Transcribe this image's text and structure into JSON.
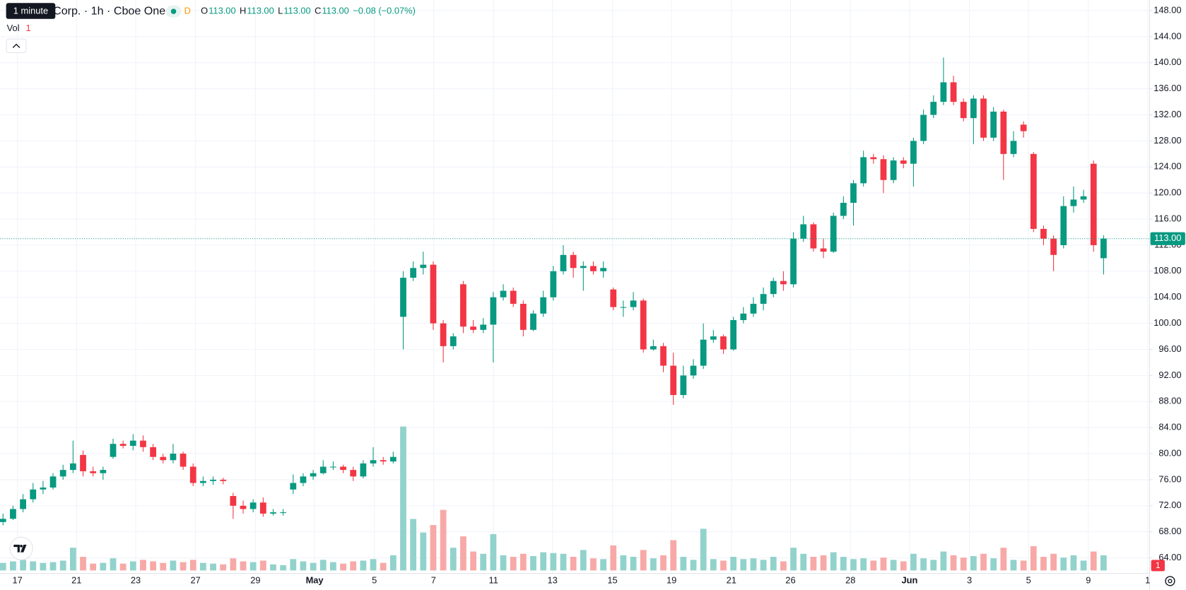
{
  "chart_data": {
    "type": "candlestick",
    "tooltip": "1 minute",
    "title": "Corp. · 1h · Cboe One",
    "interval_badge": "D",
    "ohlc": [
      {
        "label": "O",
        "value": "113.00"
      },
      {
        "label": "H",
        "value": "113.00"
      },
      {
        "label": "L",
        "value": "113.00"
      },
      {
        "label": "C",
        "value": "113.00"
      }
    ],
    "change": "−0.08 (−0.07%)",
    "volume_label": "Vol",
    "volume_value": "1",
    "alert_badge": "1",
    "last_price": {
      "value": 113,
      "label": "113.00"
    },
    "up_color": "#089981",
    "down_color": "#f23645",
    "grid": true,
    "open": [
      69.5,
      70,
      71.5,
      73,
      74.5,
      74.8,
      76.5,
      77.5,
      79.8,
      77.3,
      77,
      79.5,
      81.5,
      81.2,
      82,
      81,
      79.5,
      79,
      80,
      78,
      75.5,
      75.8,
      76,
      73.5,
      72,
      71.5,
      72.5,
      70.8,
      71,
      74.5,
      75.5,
      76.5,
      77,
      78,
      78,
      77.5,
      76.5,
      78.5,
      79,
      78.8,
      101,
      107,
      108.5,
      109,
      100,
      96.5,
      106,
      99.5,
      99,
      99.8,
      104,
      105,
      103,
      99,
      101.5,
      104,
      108,
      110.5,
      108.5,
      108.8,
      108,
      105.2,
      102.5,
      102.5,
      103.5,
      96,
      96.5,
      93.5,
      89,
      92,
      93.5,
      97.5,
      98,
      96,
      100.5,
      101.5,
      103,
      104.5,
      106.5,
      106,
      113,
      115.2,
      111.5,
      111,
      116.5,
      118.5,
      121.5,
      125.5,
      125.2,
      122,
      125,
      124.5,
      128,
      132,
      134,
      137,
      134,
      131.5,
      134.5,
      128.5,
      132.5,
      126,
      130.5,
      126,
      114.5,
      113,
      112,
      118,
      119,
      124.5,
      110
    ],
    "high": [
      70.8,
      72,
      73.8,
      75.5,
      75.8,
      77,
      78.3,
      82,
      80.5,
      78,
      78,
      82.3,
      82,
      83,
      82.8,
      81.5,
      80,
      81.5,
      80.3,
      78.5,
      76.5,
      76.5,
      76.3,
      74,
      72.8,
      73,
      73.3,
      71.5,
      71.5,
      76.8,
      77,
      77.5,
      79,
      78.8,
      78.3,
      78,
      79,
      81,
      79.5,
      80.3,
      108,
      109.5,
      111,
      109.5,
      100.5,
      98.5,
      106.5,
      100.5,
      100.8,
      104.8,
      106,
      105.5,
      103.5,
      102,
      105,
      108.8,
      112,
      111,
      109.5,
      109.5,
      109.5,
      105.5,
      103.5,
      104.8,
      103.8,
      97.5,
      97,
      95.5,
      93.5,
      94.5,
      100,
      99,
      98.3,
      101,
      102.5,
      104,
      105.5,
      107,
      108,
      114,
      116.5,
      115.5,
      113,
      117,
      119.5,
      122,
      126.5,
      126,
      125.8,
      125.5,
      125.5,
      128.5,
      132.8,
      135,
      140.8,
      138,
      134.5,
      135,
      135,
      133.2,
      132.8,
      129.5,
      131,
      126.3,
      115,
      113.5,
      119.5,
      121,
      120.5,
      125,
      113.5
    ],
    "low": [
      69,
      69.8,
      71,
      72.5,
      73.8,
      74.5,
      76,
      77,
      76.5,
      76.5,
      76,
      79.2,
      80.8,
      80.5,
      80.3,
      79,
      78.5,
      78.5,
      77.5,
      75,
      75,
      75.2,
      75.3,
      70,
      70.8,
      71,
      70.3,
      70.5,
      70.5,
      73.8,
      75,
      76,
      76.8,
      77.5,
      77,
      75.8,
      76.2,
      78,
      78.3,
      78.5,
      96,
      106.5,
      107.5,
      99,
      94,
      96,
      98.5,
      98.5,
      98.5,
      94,
      103.5,
      102.5,
      98,
      98.8,
      101,
      103.5,
      107.5,
      107,
      105,
      107.5,
      107,
      102,
      101,
      102,
      95.5,
      95.8,
      92.5,
      87.5,
      88.5,
      91.5,
      93,
      97,
      95.3,
      95.8,
      100,
      101,
      102,
      104,
      105,
      105.5,
      112.5,
      111,
      110,
      110.8,
      116,
      115,
      121,
      124.5,
      120,
      121.5,
      123.8,
      121,
      127.5,
      131.5,
      133.5,
      133.5,
      131,
      127.5,
      128,
      128,
      122,
      125.5,
      128.5,
      114,
      112,
      108,
      111.5,
      117,
      118.5,
      111,
      107.5
    ],
    "close": [
      70,
      71.5,
      73,
      74.5,
      74.8,
      76.5,
      77.5,
      78.5,
      77.3,
      77,
      77.5,
      81.5,
      81.2,
      82,
      81,
      79.5,
      79,
      80,
      78,
      75.5,
      75.8,
      76,
      75.8,
      72,
      71.5,
      72.5,
      70.8,
      71,
      71,
      75.5,
      76.5,
      77,
      78,
      78,
      77.5,
      76.5,
      78.5,
      79,
      78.8,
      79.5,
      107,
      108.5,
      109,
      100,
      96.5,
      98,
      99.5,
      99,
      99.8,
      104,
      105,
      103,
      99,
      101.5,
      104,
      108,
      110.5,
      108.5,
      108.8,
      108,
      108.5,
      102.5,
      102.5,
      103.5,
      96,
      96.5,
      93.5,
      89,
      92,
      93.5,
      97.5,
      98,
      96,
      100.5,
      101.5,
      103,
      104.5,
      106.5,
      106,
      113,
      115.2,
      111.5,
      111,
      116.5,
      118.5,
      121.5,
      125.5,
      125.2,
      122,
      125,
      124.5,
      128,
      132,
      134,
      137,
      134,
      131.5,
      134.5,
      128.5,
      132.5,
      126,
      128,
      129.5,
      114.5,
      113,
      110.5,
      118,
      119,
      119.5,
      112,
      113
    ],
    "volume": [
      10,
      12,
      14,
      12,
      10,
      11,
      13,
      30,
      18,
      9,
      10,
      16,
      9,
      12,
      14,
      12,
      10,
      13,
      11,
      14,
      10,
      9,
      8,
      16,
      12,
      11,
      13,
      8,
      7,
      15,
      12,
      10,
      14,
      11,
      9,
      12,
      13,
      15,
      10,
      20,
      190,
      68,
      50,
      60,
      80,
      30,
      45,
      25,
      22,
      48,
      20,
      18,
      22,
      19,
      24,
      23,
      22,
      18,
      27,
      16,
      15,
      33,
      20,
      18,
      27,
      16,
      20,
      40,
      18,
      14,
      55,
      15,
      13,
      18,
      15,
      16,
      14,
      18,
      12,
      30,
      22,
      18,
      20,
      24,
      18,
      15,
      16,
      13,
      17,
      14,
      12,
      22,
      16,
      14,
      25,
      20,
      17,
      19,
      22,
      16,
      30,
      14,
      13,
      32,
      18,
      22,
      17,
      20,
      13,
      25,
      20
    ],
    "ylim": [
      60.91,
      149.63
    ],
    "yticks": [
      {
        "value": 148,
        "label": "148.00"
      },
      {
        "value": 144,
        "label": "144.00"
      },
      {
        "value": 140,
        "label": "140.00"
      },
      {
        "value": 136,
        "label": "136.00"
      },
      {
        "value": 132,
        "label": "132.00"
      },
      {
        "value": 128,
        "label": "128.00"
      },
      {
        "value": 124,
        "label": "124.00"
      },
      {
        "value": 120,
        "label": "120.00"
      },
      {
        "value": 116,
        "label": "116.00"
      },
      {
        "value": 112,
        "label": "112.00"
      },
      {
        "value": 108,
        "label": "108.00"
      },
      {
        "value": 104,
        "label": "104.00"
      },
      {
        "value": 100,
        "label": "100.00"
      },
      {
        "value": 96,
        "label": "96.00"
      },
      {
        "value": 92,
        "label": "92.00"
      },
      {
        "value": 88,
        "label": "88.00"
      },
      {
        "value": 84,
        "label": "84.00"
      },
      {
        "value": 80,
        "label": "80.00"
      },
      {
        "value": 76,
        "label": "76.00"
      },
      {
        "value": 72,
        "label": "72.00"
      },
      {
        "value": 68,
        "label": "68.00"
      },
      {
        "value": 64,
        "label": "64.00"
      }
    ],
    "xlim": [
      -0.3,
      114.6
    ],
    "xticks": [
      {
        "value": 1.44,
        "label": "17"
      },
      {
        "value": 7.35,
        "label": "21"
      },
      {
        "value": 13.26,
        "label": "23"
      },
      {
        "value": 19.24,
        "label": "27"
      },
      {
        "value": 25.23,
        "label": "29"
      },
      {
        "value": 31.14,
        "label": "May"
      },
      {
        "value": 37.12,
        "label": "5"
      },
      {
        "value": 43.03,
        "label": "7"
      },
      {
        "value": 49.02,
        "label": "11"
      },
      {
        "value": 54.92,
        "label": "13"
      },
      {
        "value": 60.91,
        "label": "15"
      },
      {
        "value": 66.82,
        "label": "19"
      },
      {
        "value": 72.8,
        "label": "21"
      },
      {
        "value": 78.71,
        "label": "26"
      },
      {
        "value": 84.7,
        "label": "28"
      },
      {
        "value": 90.61,
        "label": "Jun"
      },
      {
        "value": 96.59,
        "label": "3"
      },
      {
        "value": 102.5,
        "label": "5"
      },
      {
        "value": 108.48,
        "label": "9"
      },
      {
        "value": 114.4,
        "label": "1"
      }
    ]
  }
}
